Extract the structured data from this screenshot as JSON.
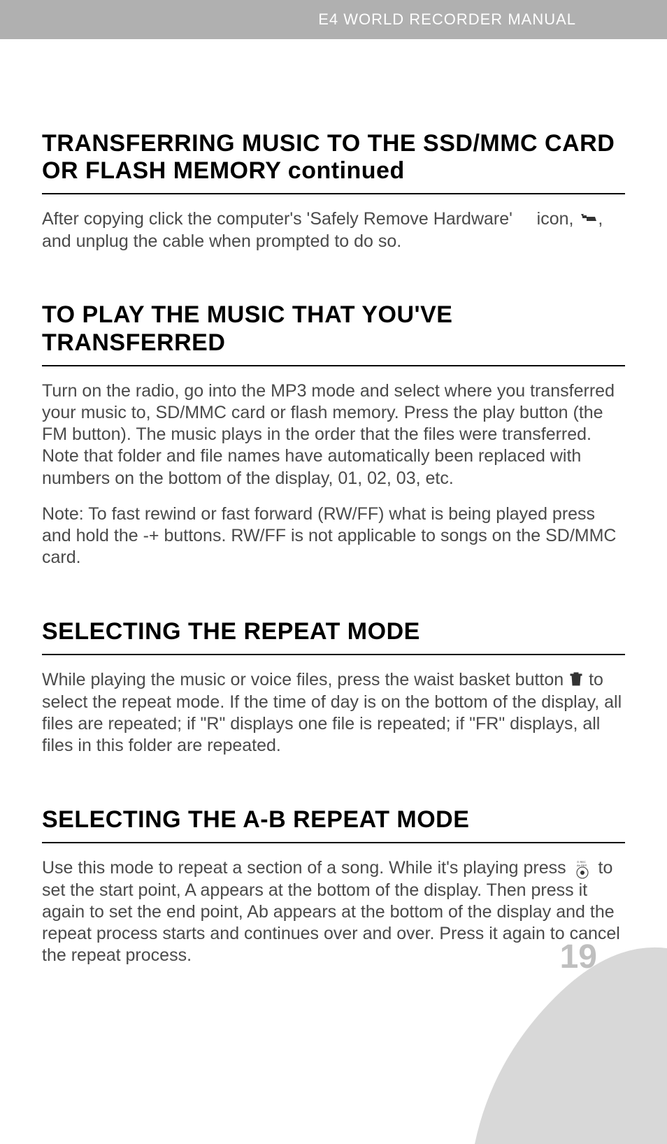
{
  "header": {
    "prefix": "E4",
    "middle": "WORLD RECORDER",
    "suffix": "MANUAL"
  },
  "sections": [
    {
      "heading_main": "TRANSFERRING MUSIC TO THE SSD/MMC CARD OR FLASH MEMORY",
      "heading_continued": "continued",
      "paragraphs": [
        "After copying click the computer's 'Safely Remove Hardware'     icon, [USB_ICON], and unplug the cable when prompted to do so."
      ]
    },
    {
      "heading_main": "TO PLAY THE MUSIC THAT YOU'VE TRANSFERRED",
      "paragraphs": [
        "Turn on the radio, go into the MP3 mode and select where you transferred your music to, SD/MMC card or flash memory. Press the play button (the FM button). The music plays in the order that the files were transferred. Note that folder and file names have automatically been replaced with numbers on the bottom of the display, 01, 02, 03, etc.",
        "Note: To fast rewind or fast forward (RW/FF) what is being played press and hold the -+ buttons. RW/FF is not applicable to songs on the SD/MMC card."
      ]
    },
    {
      "heading_main": "SELECTING THE REPEAT MODE",
      "paragraphs": [
        "While playing the music or voice files, press the waist basket button [TRASH_ICON] to select the repeat mode. If the time of day is on the bottom of the display, all files are repeated; if \"R\" displays one file is repeated; if \"FR\" displays, all files in this folder are repeated."
      ]
    },
    {
      "heading_main": "SELECTING THE A-B REPEAT MODE",
      "paragraphs": [
        "Use this mode to repeat a section of a song. While it's playing press [REC_ICON] to set the start point, A appears at the bottom of the display. Then press it again to set the end point, Ab appears at the bottom of the display and the repeat process starts and continues over and over. Press it again to cancel the repeat process."
      ]
    }
  ],
  "page_number": "19",
  "colors": {
    "header_bg": "#b0b0b0",
    "header_text": "#ffffff",
    "heading_text": "#000000",
    "body_text": "#4a4a4a",
    "page_number": "#bfbfbf",
    "corner_shape": "#d8d8d8"
  },
  "icons": {
    "usb": "usb-eject-icon",
    "trash": "trash-can-icon",
    "rec": "rec-ab-rep-icon"
  }
}
